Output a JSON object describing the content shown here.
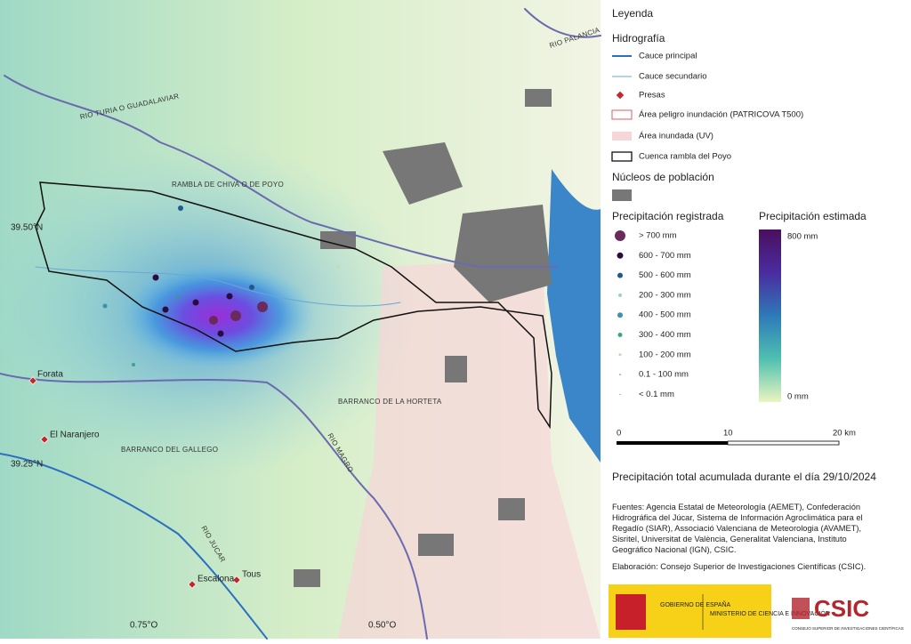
{
  "map_labels": {
    "turia": "RIO TURIA O GUADALAVIAR",
    "palancia": "RIO PALANCIA",
    "chiva": "RAMBLA DE CHIVA O DE POYO",
    "lat_50": "39.50°N",
    "lat_25": "39.25°N",
    "forata": "Forata",
    "naranjero": "El Naranjero",
    "horteta": "BARRANCO DE LA HORTETA",
    "magro": "RIO MAGRO",
    "gallego": "BARRANCO DEL GALLEGO",
    "jucar": "RIO JUCAR",
    "tous": "Tous",
    "escalona": "Escalona",
    "lon_75": "0.75°O",
    "lon_50": "0.50°O"
  },
  "legend": {
    "title": "Leyenda",
    "hydro_title": "Hidrografía",
    "hydro": [
      "Cauce principal",
      "Cauce secundario",
      "Presas",
      "Área peligro inundación (PATRICOVA T500)",
      "Área inundada (UV)",
      "Cuenca rambla del Poyo"
    ],
    "urban_title": "Núcleos de población",
    "recorded_title": "Precipitación registrada",
    "recorded": [
      "> 700 mm",
      "600 - 700 mm",
      "500 - 600 mm",
      "200 - 300 mm",
      "400 - 500 mm",
      "300 - 400 mm",
      "100 - 200 mm",
      "0.1 - 100 mm",
      "< 0.1 mm"
    ],
    "estimated_title": "Precipitación estimada",
    "estimated_max": "800 mm",
    "estimated_min": "0 mm"
  },
  "scale": {
    "start": "0",
    "mid": "10",
    "end": "20 km"
  },
  "footer": {
    "title": "Precipitación total acumulada durante el día 29/10/2024",
    "sources": "Fuentes: Agencia Estatal de Meteorología (AEMET), Confederación Hidrográfica del Júcar, Sistema de Información Agroclimática para el Regadío (SIAR), Associació Valenciana de Meteorologia (AVAMET), Sisritel, Universitat de València, Generalitat Valenciana, Instituto Geográfico Nacional (IGN), CSIC.",
    "credits": "Elaboración: Consejo Superior de Investigaciones Científicas (CSIC).",
    "gov": "GOBIERNO DE ESPAÑA",
    "ministry": "MINISTERIO DE CIENCIA E INNOVACIÓN",
    "csic": "CSIC",
    "csic_full": "CONSEJO SUPERIOR DE INVESTIGACIONES CIENTÍFICAS"
  }
}
